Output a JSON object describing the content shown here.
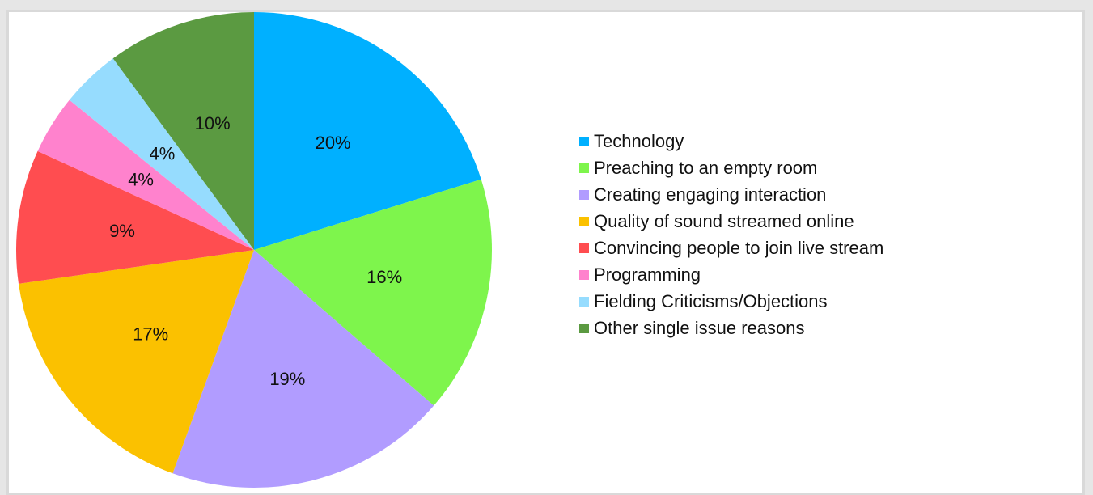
{
  "chart_data": {
    "type": "pie",
    "title": "",
    "legend_position": "right",
    "slices": [
      {
        "label": "Technology",
        "value": 20,
        "display": "20%",
        "color": "#00b0ff"
      },
      {
        "label": "Preaching to an empty room",
        "value": 16,
        "display": "16%",
        "color": "#7ef54c"
      },
      {
        "label": "Creating engaging interaction",
        "value": 19,
        "display": "19%",
        "color": "#b19cff"
      },
      {
        "label": "Quality of sound streamed online",
        "value": 17,
        "display": "17%",
        "color": "#fbc100"
      },
      {
        "label": "Convincing people to join live stream",
        "value": 9,
        "display": "9%",
        "color": "#ff4d50"
      },
      {
        "label": "Programming",
        "value": 4,
        "display": "4%",
        "color": "#ff82cd"
      },
      {
        "label": "Fielding Criticisms/Objections",
        "value": 4,
        "display": "4%",
        "color": "#96dcfe"
      },
      {
        "label": "Other single issue reasons",
        "value": 10,
        "display": "10%",
        "color": "#5b9a41"
      }
    ]
  }
}
